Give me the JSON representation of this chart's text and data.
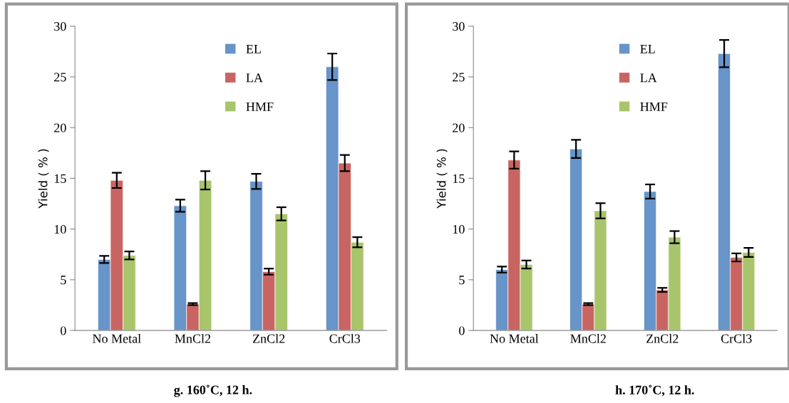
{
  "chart_data": [
    {
      "type": "bar",
      "title": "g. 160˚C, 12 h.",
      "ylabel": "Yield ( % )",
      "categories": [
        "No Metal",
        "MnCl2",
        "ZnCl2",
        "CrCl3"
      ],
      "ylim": [
        0,
        30
      ],
      "yticks": [
        0,
        5,
        10,
        15,
        20,
        25,
        30
      ],
      "grid": false,
      "legend": "top",
      "series": [
        {
          "name": "EL",
          "color": "#6794c9",
          "values": [
            7.0,
            12.3,
            14.7,
            26.0
          ],
          "errors": [
            0.35,
            0.6,
            0.75,
            1.3
          ]
        },
        {
          "name": "LA",
          "color": "#c86562",
          "values": [
            14.8,
            2.6,
            5.8,
            16.5
          ],
          "errors": [
            0.75,
            0.1,
            0.3,
            0.8
          ]
        },
        {
          "name": "HMF",
          "color": "#a9c56b",
          "values": [
            7.4,
            14.8,
            11.5,
            8.7
          ],
          "errors": [
            0.4,
            0.9,
            0.65,
            0.5
          ]
        }
      ]
    },
    {
      "type": "bar",
      "title": "h. 170˚C, 12 h.",
      "ylabel": "Yield ( % )",
      "categories": [
        "No Metal",
        "MnCl2",
        "ZnCl2",
        "CrCl3"
      ],
      "ylim": [
        0,
        30
      ],
      "yticks": [
        0,
        5,
        10,
        15,
        20,
        25,
        30
      ],
      "grid": false,
      "legend": "top",
      "series": [
        {
          "name": "EL",
          "color": "#6794c9",
          "values": [
            6.0,
            17.9,
            13.7,
            27.3
          ],
          "errors": [
            0.3,
            0.9,
            0.7,
            1.35
          ]
        },
        {
          "name": "LA",
          "color": "#c86562",
          "values": [
            16.8,
            2.6,
            4.0,
            7.2
          ],
          "errors": [
            0.85,
            0.1,
            0.2,
            0.4
          ]
        },
        {
          "name": "HMF",
          "color": "#a9c56b",
          "values": [
            6.5,
            11.8,
            9.2,
            7.7
          ],
          "errors": [
            0.4,
            0.75,
            0.6,
            0.45
          ]
        }
      ]
    }
  ]
}
